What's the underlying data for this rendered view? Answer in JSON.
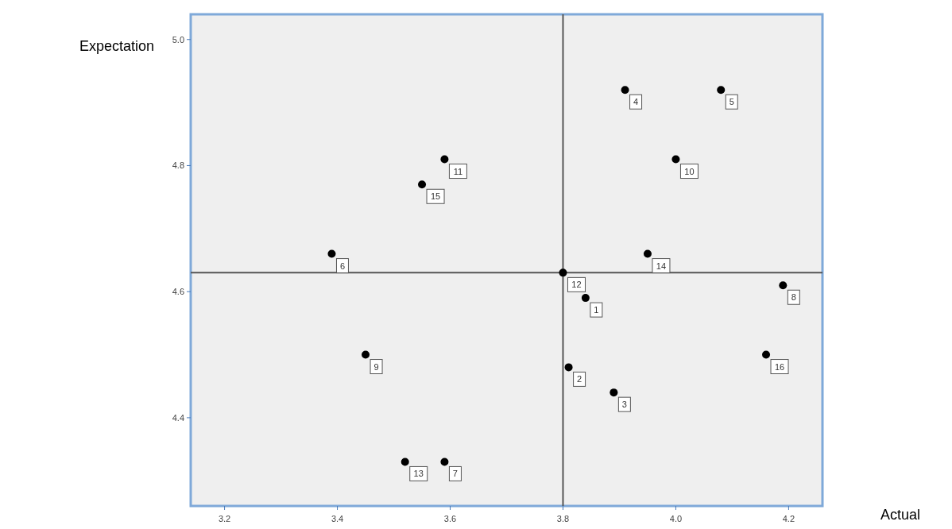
{
  "chart_data": {
    "type": "scatter",
    "xlabel": "Actual",
    "ylabel": "Expectation",
    "x": [
      3.84,
      3.81,
      3.89,
      3.91,
      4.08,
      3.39,
      3.59,
      4.19,
      3.45,
      4.0,
      3.59,
      3.8,
      3.52,
      3.95,
      3.55,
      4.16
    ],
    "series": [
      {
        "color": "#000000",
        "values": [
          4.59,
          4.48,
          4.44,
          4.92,
          4.92,
          4.66,
          4.33,
          4.61,
          4.5,
          4.81,
          4.81,
          4.63,
          4.33,
          4.66,
          4.77,
          4.5
        ]
      }
    ],
    "xlim": [
      3.14,
      4.26
    ],
    "ylim": [
      4.26,
      5.04
    ],
    "xticks": [
      {
        "value": 3.2,
        "label": "3.2"
      },
      {
        "value": 3.4,
        "label": "3.4"
      },
      {
        "value": 3.6,
        "label": "3.6"
      },
      {
        "value": 3.8,
        "label": "3.8"
      },
      {
        "value": 4.0,
        "label": "4.0"
      },
      {
        "value": 4.2,
        "label": "4.2"
      }
    ],
    "yticks": [
      {
        "value": 4.4,
        "label": "4.4"
      },
      {
        "value": 4.6,
        "label": "4.6"
      },
      {
        "value": 4.8,
        "label": "4.8"
      },
      {
        "value": 5.0,
        "label": "5.0"
      }
    ],
    "ref_lines": [
      {
        "axis": "x",
        "value": 3.8,
        "color": "#555555"
      },
      {
        "axis": "y",
        "value": 4.63,
        "color": "#555555"
      }
    ],
    "marker": "circle",
    "grid": false,
    "annotations": [
      {
        "text": "1",
        "x": 3.84,
        "y": 4.59
      },
      {
        "text": "2",
        "x": 3.81,
        "y": 4.48
      },
      {
        "text": "3",
        "x": 3.89,
        "y": 4.44
      },
      {
        "text": "4",
        "x": 3.91,
        "y": 4.92
      },
      {
        "text": "5",
        "x": 4.08,
        "y": 4.92
      },
      {
        "text": "6",
        "x": 3.39,
        "y": 4.66
      },
      {
        "text": "7",
        "x": 3.59,
        "y": 4.33
      },
      {
        "text": "8",
        "x": 4.19,
        "y": 4.61
      },
      {
        "text": "9",
        "x": 3.45,
        "y": 4.5
      },
      {
        "text": "10",
        "x": 4.0,
        "y": 4.81
      },
      {
        "text": "11",
        "x": 3.59,
        "y": 4.81
      },
      {
        "text": "12",
        "x": 3.8,
        "y": 4.63
      },
      {
        "text": "13",
        "x": 3.52,
        "y": 4.33
      },
      {
        "text": "14",
        "x": 3.95,
        "y": 4.66
      },
      {
        "text": "15",
        "x": 3.55,
        "y": 4.77
      },
      {
        "text": "16",
        "x": 4.16,
        "y": 4.5
      }
    ]
  }
}
